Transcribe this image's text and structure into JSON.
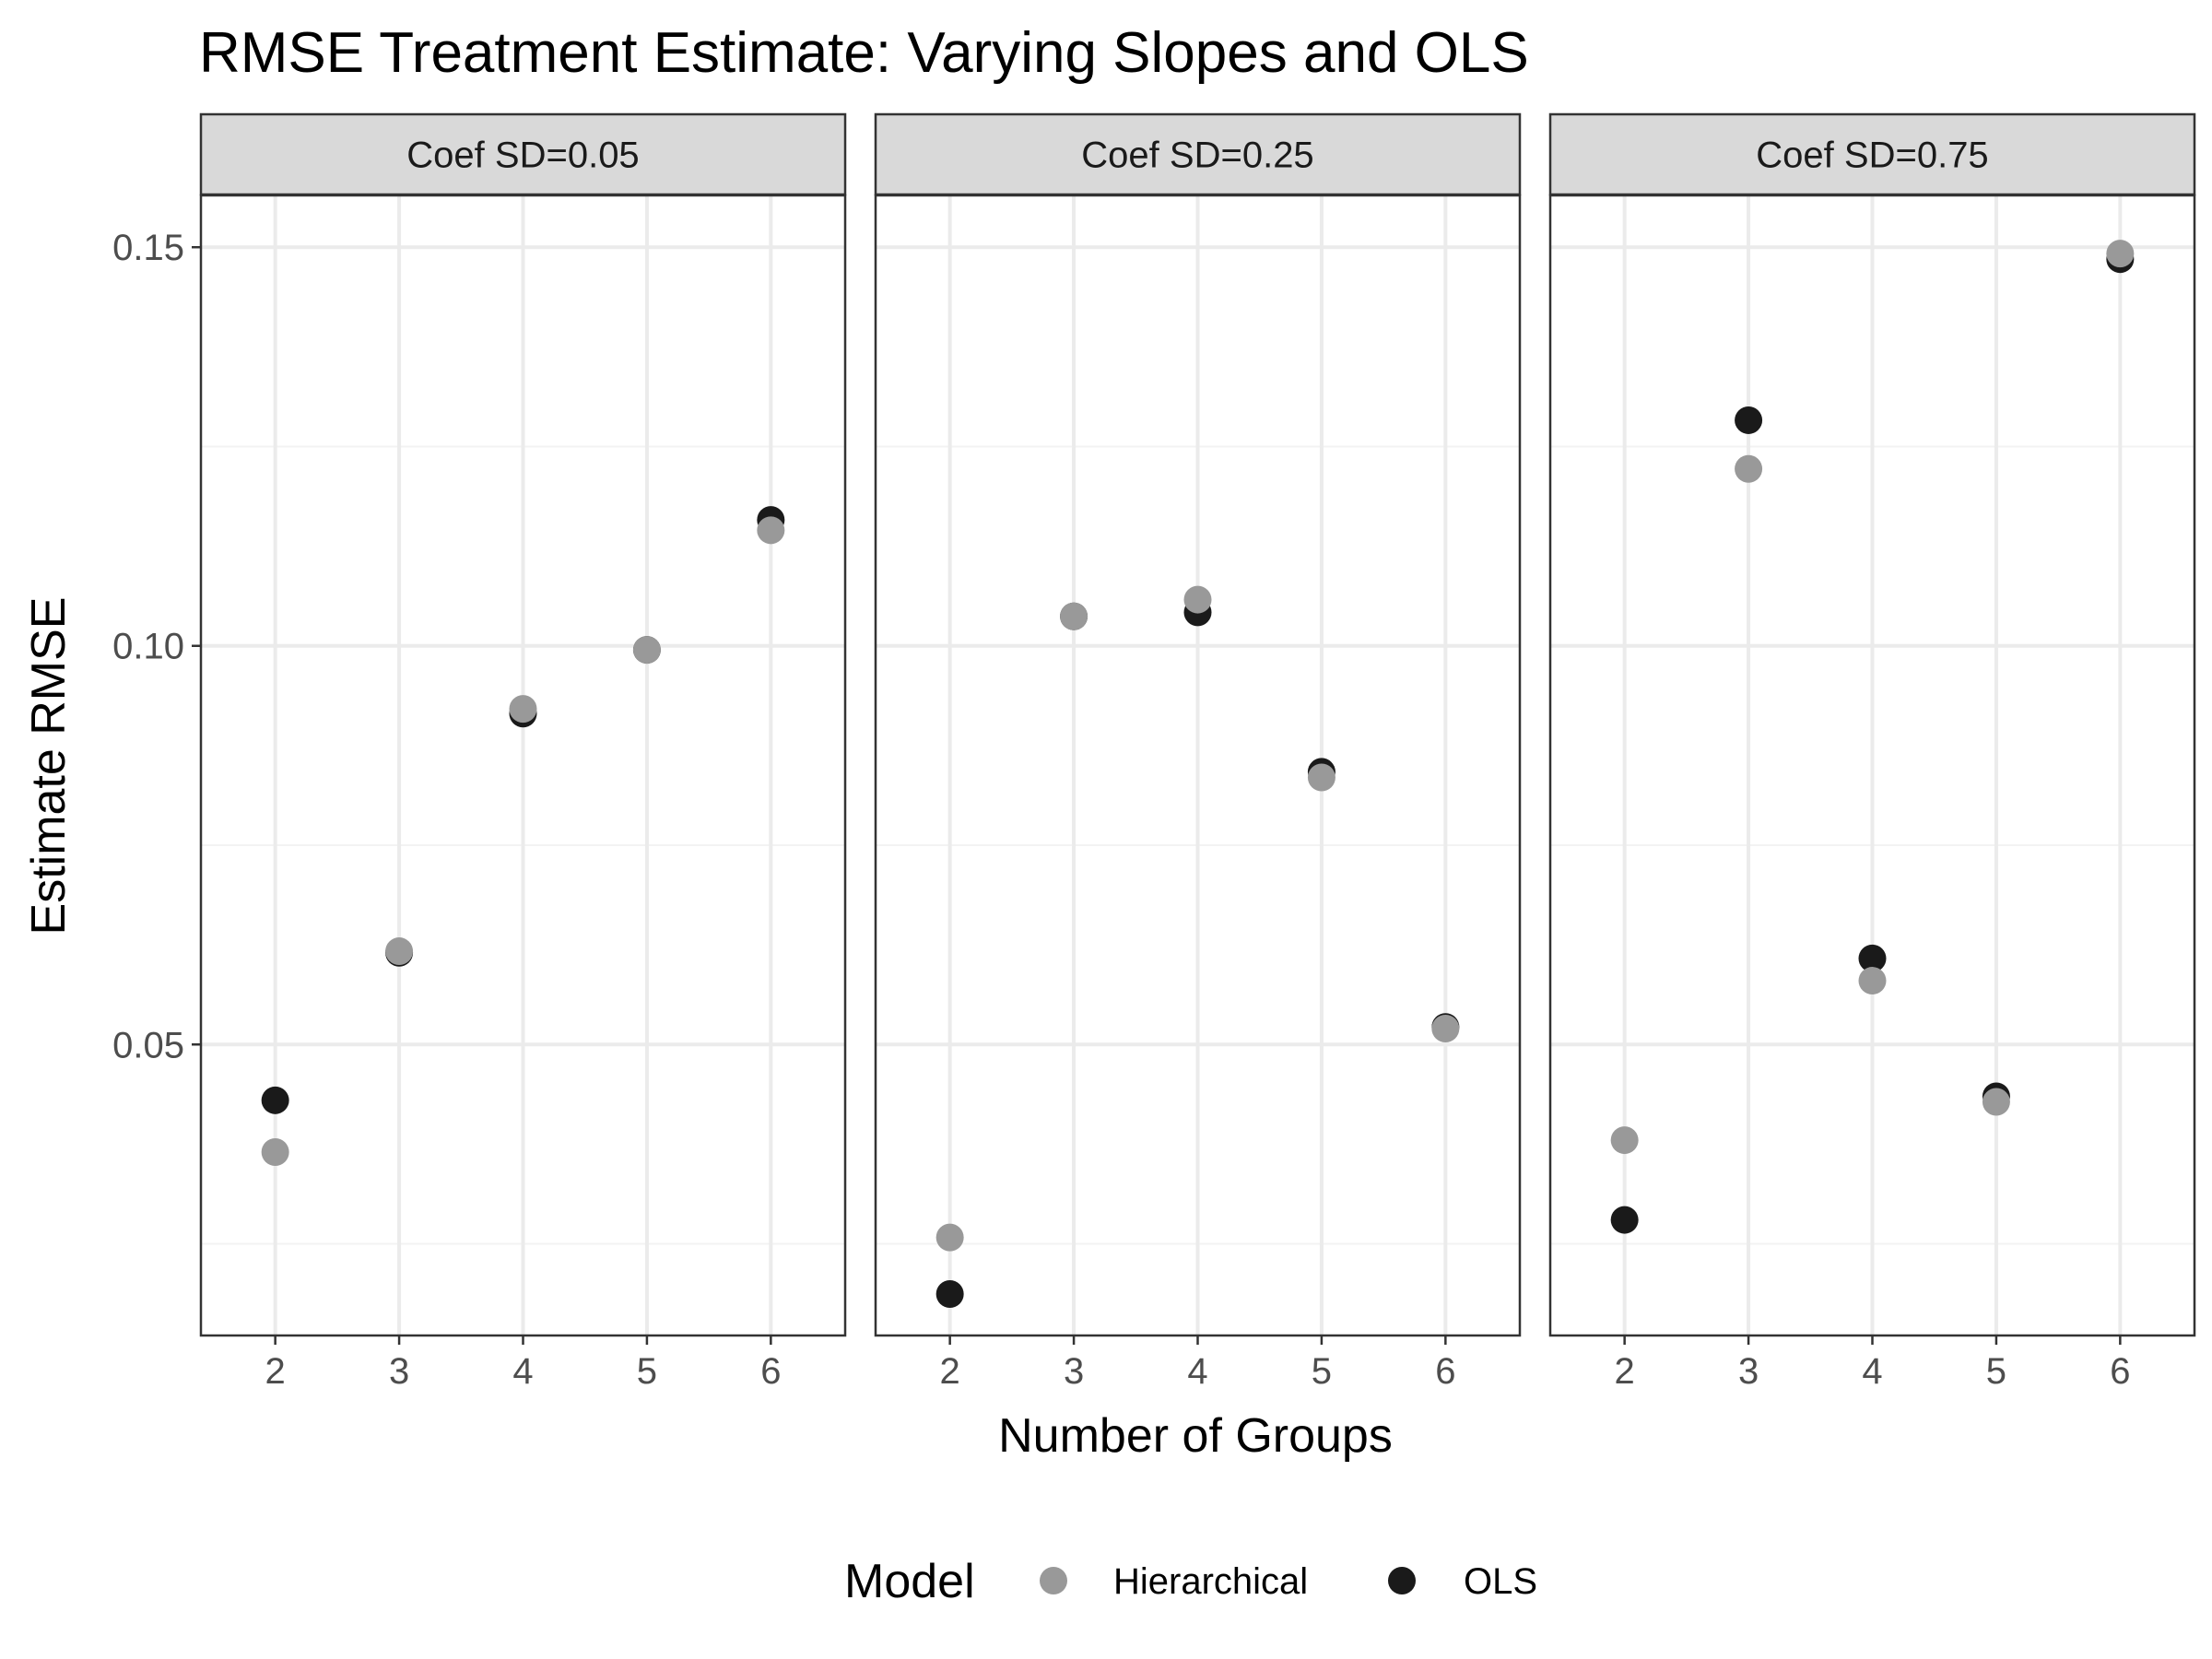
{
  "chart_data": {
    "type": "scatter",
    "title": "RMSE Treatment Estimate: Varying Slopes and OLS",
    "xlabel": "Number of Groups",
    "ylabel": "Estimate RMSE",
    "x": [
      2,
      3,
      4,
      5,
      6
    ],
    "x_tick_labels": [
      "2",
      "3",
      "4",
      "5",
      "6"
    ],
    "xlim": [
      1.4,
      6.6
    ],
    "ylim": [
      0.0135,
      0.1565
    ],
    "y_ticks": [
      0.05,
      0.1,
      0.15
    ],
    "y_tick_labels": [
      "0.05",
      "0.10",
      "0.15"
    ],
    "y_minor_ticks": [
      0.025,
      0.075,
      0.125
    ],
    "grid": true,
    "legend": {
      "title": "Model",
      "position": "bottom",
      "entries": [
        "Hierarchical",
        "OLS"
      ]
    },
    "colors": {
      "Hierarchical": "#999999",
      "OLS": "#1a1a1a",
      "strip_background": "#d9d9d9",
      "panel_border": "#333333",
      "grid_major": "#ebebeb",
      "grid_minor": "#f3f3f3"
    },
    "panels": [
      {
        "label": "Coef SD=0.05",
        "series": [
          {
            "name": "OLS",
            "values": [
              0.043,
              0.0615,
              0.0915,
              0.0995,
              0.1158
            ]
          },
          {
            "name": "Hierarchical",
            "values": [
              0.0365,
              0.0617,
              0.0921,
              0.0995,
              0.1145
            ]
          }
        ]
      },
      {
        "label": "Coef SD=0.25",
        "series": [
          {
            "name": "OLS",
            "values": [
              0.0187,
              0.1037,
              0.1042,
              0.0842,
              0.0522
            ]
          },
          {
            "name": "Hierarchical",
            "values": [
              0.0258,
              0.1037,
              0.1058,
              0.0835,
              0.052
            ]
          }
        ]
      },
      {
        "label": "Coef SD=0.75",
        "series": [
          {
            "name": "OLS",
            "values": [
              0.028,
              0.1283,
              0.0608,
              0.0435,
              0.1485
            ]
          },
          {
            "name": "Hierarchical",
            "values": [
              0.038,
              0.1222,
              0.058,
              0.0428,
              0.1492
            ]
          }
        ]
      }
    ]
  }
}
